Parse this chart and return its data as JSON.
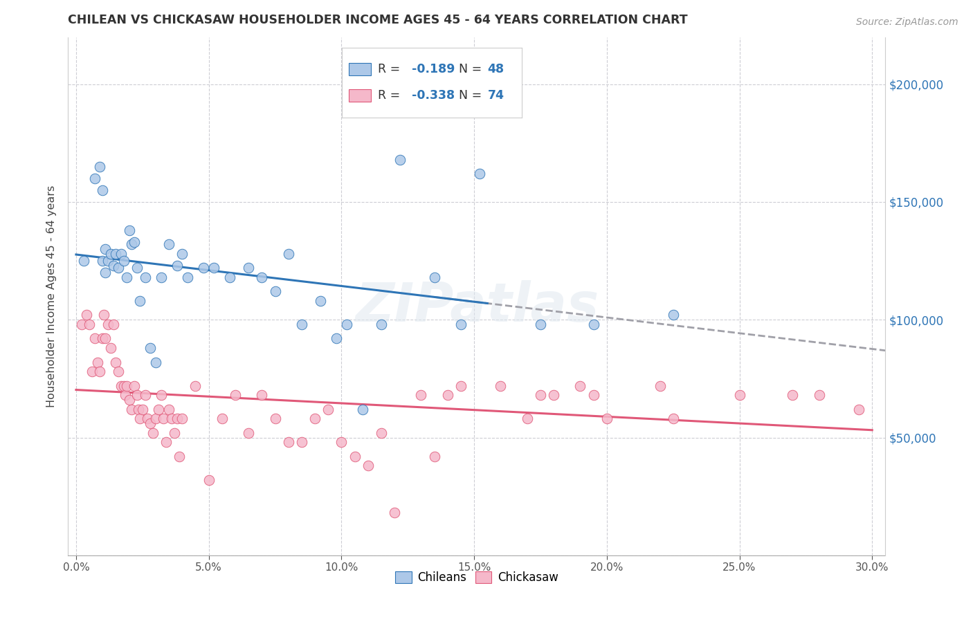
{
  "title": "CHILEAN VS CHICKASAW HOUSEHOLDER INCOME AGES 45 - 64 YEARS CORRELATION CHART",
  "source": "Source: ZipAtlas.com",
  "ylabel": "Householder Income Ages 45 - 64 years",
  "ylim": [
    0,
    220000
  ],
  "xlim": [
    -0.3,
    30.5
  ],
  "chilean_R": -0.189,
  "chilean_N": 48,
  "chickasaw_R": -0.338,
  "chickasaw_N": 74,
  "chilean_color": "#adc8e8",
  "chickasaw_color": "#f5b8ca",
  "chilean_line_color": "#2e75b6",
  "chickasaw_line_color": "#e05878",
  "trendline_ext_color": "#a0a0a8",
  "background_color": "#ffffff",
  "grid_color": "#c8c8d0",
  "right_label_color": "#2e75b6",
  "chileans_x": [
    0.3,
    0.7,
    0.9,
    1.0,
    1.0,
    1.1,
    1.1,
    1.2,
    1.3,
    1.4,
    1.5,
    1.6,
    1.7,
    1.8,
    1.9,
    2.0,
    2.1,
    2.2,
    2.3,
    2.4,
    2.6,
    2.8,
    3.0,
    3.2,
    3.5,
    3.8,
    4.0,
    4.2,
    4.8,
    5.2,
    5.8,
    6.5,
    7.0,
    7.5,
    8.0,
    8.5,
    9.2,
    9.8,
    10.2,
    10.8,
    11.5,
    12.2,
    13.5,
    14.5,
    15.2,
    17.5,
    19.5,
    22.5
  ],
  "chileans_y": [
    125000,
    160000,
    165000,
    155000,
    125000,
    120000,
    130000,
    125000,
    128000,
    123000,
    128000,
    122000,
    128000,
    125000,
    118000,
    138000,
    132000,
    133000,
    122000,
    108000,
    118000,
    88000,
    82000,
    118000,
    132000,
    123000,
    128000,
    118000,
    122000,
    122000,
    118000,
    122000,
    118000,
    112000,
    128000,
    98000,
    108000,
    92000,
    98000,
    62000,
    98000,
    168000,
    118000,
    98000,
    162000,
    98000,
    98000,
    102000
  ],
  "chickasaw_x": [
    0.2,
    0.4,
    0.5,
    0.6,
    0.7,
    0.8,
    0.9,
    1.0,
    1.05,
    1.1,
    1.2,
    1.3,
    1.4,
    1.5,
    1.6,
    1.7,
    1.8,
    1.85,
    1.9,
    2.0,
    2.1,
    2.2,
    2.3,
    2.35,
    2.4,
    2.5,
    2.6,
    2.7,
    2.8,
    2.9,
    3.0,
    3.1,
    3.2,
    3.3,
    3.4,
    3.5,
    3.6,
    3.7,
    3.8,
    3.9,
    4.0,
    4.5,
    5.0,
    5.5,
    6.0,
    6.5,
    7.0,
    7.5,
    8.0,
    8.5,
    9.0,
    9.5,
    10.0,
    10.5,
    11.0,
    11.5,
    12.0,
    13.0,
    14.0,
    14.5,
    16.0,
    17.0,
    18.0,
    19.0,
    20.0,
    22.0,
    25.0,
    27.0,
    28.0,
    29.5,
    22.5,
    13.5,
    19.5,
    17.5
  ],
  "chickasaw_y": [
    98000,
    102000,
    98000,
    78000,
    92000,
    82000,
    78000,
    92000,
    102000,
    92000,
    98000,
    88000,
    98000,
    82000,
    78000,
    72000,
    72000,
    68000,
    72000,
    66000,
    62000,
    72000,
    68000,
    62000,
    58000,
    62000,
    68000,
    58000,
    56000,
    52000,
    58000,
    62000,
    68000,
    58000,
    48000,
    62000,
    58000,
    52000,
    58000,
    42000,
    58000,
    72000,
    32000,
    58000,
    68000,
    52000,
    68000,
    58000,
    48000,
    48000,
    58000,
    62000,
    48000,
    42000,
    38000,
    52000,
    18000,
    68000,
    68000,
    72000,
    72000,
    58000,
    68000,
    72000,
    58000,
    72000,
    68000,
    68000,
    68000,
    62000,
    58000,
    42000,
    68000,
    68000
  ],
  "right_ytick_vals": [
    50000,
    100000,
    150000,
    200000
  ],
  "right_ytick_labels": [
    "$50,000",
    "$100,000",
    "$150,000",
    "$200,000"
  ]
}
